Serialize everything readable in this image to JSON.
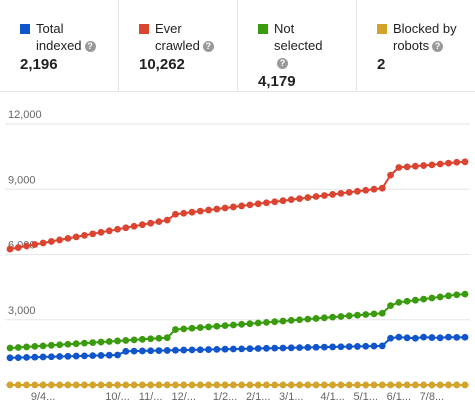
{
  "cards": [
    {
      "label": "Total indexed",
      "value": "2,196",
      "color": "#1155cc"
    },
    {
      "label": "Ever crawled",
      "value": "10,262",
      "color": "#dc4432"
    },
    {
      "label": "Not selected",
      "value": "4,179",
      "color": "#3b9b0f"
    },
    {
      "label": "Blocked by robots",
      "value": "2",
      "color": "#d3a32c"
    }
  ],
  "chart_data": {
    "type": "line",
    "categories": [
      null,
      null,
      null,
      null,
      "9/4...",
      null,
      null,
      null,
      null,
      null,
      null,
      null,
      null,
      "10/...",
      null,
      null,
      null,
      "11/...",
      null,
      null,
      null,
      "12/...",
      null,
      null,
      null,
      null,
      "1/2...",
      null,
      null,
      null,
      "2/1...",
      null,
      null,
      null,
      "3/1...",
      null,
      null,
      null,
      null,
      "4/1...",
      null,
      null,
      null,
      "5/1...",
      null,
      null,
      null,
      "6/1...",
      null,
      null,
      null,
      "7/8...",
      null,
      null,
      null,
      null
    ],
    "series": [
      {
        "color": "#dc4432",
        "values": [
          6250,
          6320,
          6390,
          6460,
          6530,
          6600,
          6670,
          6740,
          6810,
          6880,
          6950,
          7020,
          7090,
          7160,
          7230,
          7300,
          7370,
          7440,
          7510,
          7580,
          7850,
          7898,
          7946,
          7994,
          8042,
          8090,
          8138,
          8186,
          8234,
          8282,
          8330,
          8378,
          8426,
          8474,
          8522,
          8570,
          8618,
          8666,
          8714,
          8762,
          8810,
          8858,
          8906,
          8954,
          9002,
          9050,
          9650,
          10000,
          10030,
          10060,
          10090,
          10120,
          10160,
          10200,
          10240,
          10262
        ]
      },
      {
        "color": "#3b9b0f",
        "values": [
          1700,
          1725,
          1750,
          1775,
          1800,
          1825,
          1850,
          1875,
          1900,
          1925,
          1950,
          1975,
          2000,
          2025,
          2050,
          2075,
          2100,
          2125,
          2150,
          2175,
          2550,
          2580,
          2610,
          2640,
          2670,
          2700,
          2730,
          2760,
          2790,
          2820,
          2850,
          2880,
          2910,
          2940,
          2970,
          3000,
          3030,
          3060,
          3090,
          3120,
          3150,
          3180,
          3210,
          3240,
          3270,
          3300,
          3650,
          3800,
          3850,
          3900,
          3950,
          4000,
          4050,
          4100,
          4150,
          4179
        ]
      },
      {
        "color": "#1155cc",
        "values": [
          1250,
          1260,
          1270,
          1280,
          1290,
          1300,
          1310,
          1320,
          1330,
          1340,
          1350,
          1360,
          1370,
          1380,
          1550,
          1558,
          1566,
          1574,
          1582,
          1590,
          1598,
          1606,
          1614,
          1622,
          1630,
          1638,
          1646,
          1654,
          1662,
          1670,
          1678,
          1686,
          1694,
          1702,
          1710,
          1718,
          1726,
          1734,
          1742,
          1750,
          1758,
          1766,
          1774,
          1782,
          1790,
          1800,
          2150,
          2200,
          2170,
          2150,
          2200,
          2180,
          2170,
          2200,
          2190,
          2196
        ]
      },
      {
        "color": "#d3a32c",
        "values": [
          2,
          2,
          2,
          2,
          2,
          2,
          2,
          2,
          2,
          2,
          2,
          2,
          2,
          2,
          2,
          2,
          2,
          2,
          2,
          2,
          2,
          2,
          2,
          2,
          2,
          2,
          2,
          2,
          2,
          2,
          2,
          2,
          2,
          2,
          2,
          2,
          2,
          2,
          2,
          2,
          2,
          2,
          2,
          2,
          2,
          2,
          2,
          2,
          2,
          2,
          2,
          2,
          2,
          2,
          2,
          2
        ]
      }
    ],
    "ylim": [
      0,
      12000
    ],
    "yticks": [
      {
        "value": 3000,
        "label": "3,000"
      },
      {
        "value": 6000,
        "label": "6,000"
      },
      {
        "value": 9000,
        "label": "9,000"
      },
      {
        "value": 12000,
        "label": "12,000"
      }
    ],
    "grid": true
  }
}
